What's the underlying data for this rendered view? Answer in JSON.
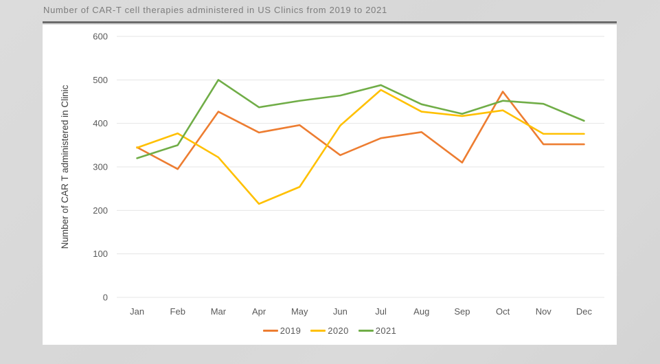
{
  "header": {
    "title": "Number of CAR-T cell therapies administered in US Clinics from 2019 to 2021"
  },
  "chart_data": {
    "type": "line",
    "title": "Number of CAR-T cell therapies administered in US Clinics from 2019 to 2021",
    "xlabel": "",
    "ylabel": "Number of CAR T administered in Clinic",
    "ylim": [
      0,
      600
    ],
    "ytick_step": 100,
    "grid": true,
    "legend_position": "bottom",
    "categories": [
      "Jan",
      "Feb",
      "Mar",
      "Apr",
      "May",
      "Jun",
      "Jul",
      "Aug",
      "Sep",
      "Oct",
      "Nov",
      "Dec"
    ],
    "series": [
      {
        "name": "2019",
        "color": "#ED7D31",
        "values": [
          345,
          295,
          427,
          379,
          396,
          327,
          366,
          380,
          310,
          473,
          352,
          352
        ]
      },
      {
        "name": "2020",
        "color": "#FFC000",
        "values": [
          344,
          377,
          322,
          215,
          254,
          395,
          477,
          427,
          417,
          430,
          376,
          376
        ]
      },
      {
        "name": "2021",
        "color": "#70AD47",
        "values": [
          320,
          350,
          500,
          437,
          452,
          464,
          488,
          444,
          422,
          452,
          445,
          406
        ]
      }
    ]
  },
  "style": {
    "grid_color": "#e4e4e4",
    "tick_label_color": "#595959",
    "axis_title_color": "#3f3f3f",
    "card_bg": "#ffffff",
    "page_bg": "#d9d9d9",
    "rule_color": "#6b6b6b"
  }
}
